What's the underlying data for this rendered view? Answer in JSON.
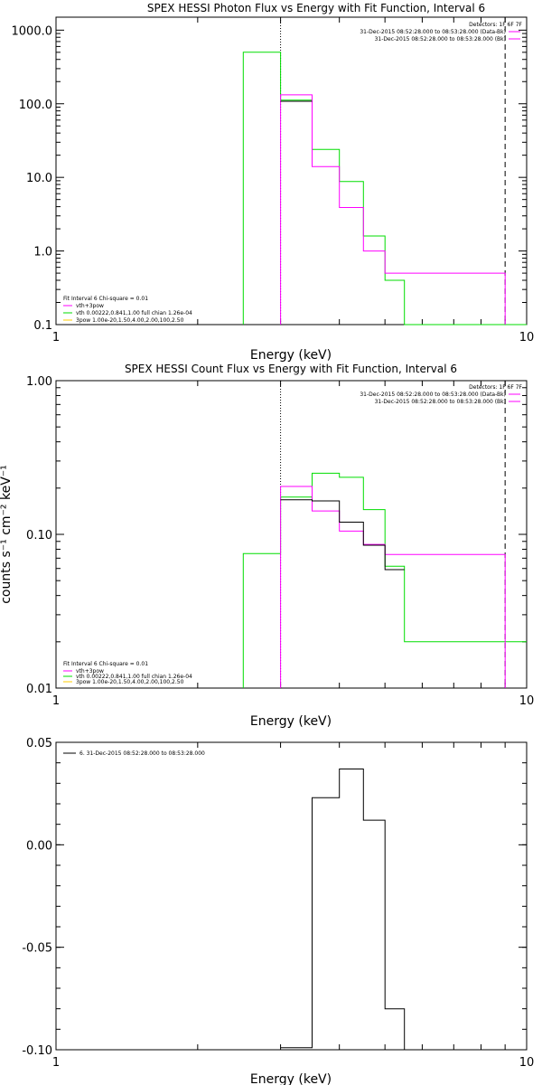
{
  "colors": {
    "data": "#ff00ff",
    "total": "#000000",
    "vth": "#00dd00",
    "pow": "#ffcc00",
    "frame": "#000000"
  },
  "chart_data": [
    {
      "type": "line",
      "step": true,
      "title": "SPEX HESSI Photon Flux vs Energy with Fit Function, Interval 6",
      "xlabel": "Energy (keV)",
      "ylabel": "",
      "xscale": "log",
      "yscale": "log",
      "xlim": [
        1,
        10
      ],
      "ylim": [
        0.1,
        1500
      ],
      "xticks": [
        {
          "v": 1,
          "label": "1"
        },
        {
          "v": 10,
          "label": "10"
        }
      ],
      "yticks": [
        {
          "v": 1000,
          "label": "1000.0"
        },
        {
          "v": 100,
          "label": "100.0"
        },
        {
          "v": 10,
          "label": "10.0"
        },
        {
          "v": 1,
          "label": "1.0"
        },
        {
          "v": 0.1,
          "label": "0.1"
        }
      ],
      "vlines": [
        {
          "x": 3.0,
          "style": "dotted",
          "color": "frame"
        },
        {
          "x": 9.0,
          "style": "dashed",
          "color": "frame"
        }
      ],
      "top_right_lines": [
        {
          "text": "Detectors: 1F 6F 7F",
          "color": null
        },
        {
          "text": "31-Dec-2015 08:52:28.000 to 08:53:28.000 (Data-Bk)",
          "color": "data"
        },
        {
          "text": "31-Dec-2015 08:52:28.000 to 08:53:28.000 (Bk)",
          "color": "data"
        }
      ],
      "legend": {
        "position": "bottom-left",
        "header": "Fit Interval 6   Chi-square = 0.01",
        "entries": [
          {
            "text": "vth+3pow",
            "color": "data"
          },
          {
            "text": "vth 0.00222,0.841,1.00  full chian 1.26e-04",
            "color": "vth"
          },
          {
            "text": "3pow 1.00e-20,1.50,4.00,2.00,100,2.50",
            "color": "pow"
          }
        ]
      },
      "series": [
        {
          "role": "vth",
          "color": "vth",
          "edges": [
            2.5,
            3.0,
            3.5,
            4.0,
            4.5,
            5.0,
            5.5,
            6.5,
            9.0,
            10.0
          ],
          "values": [
            500,
            112,
            24,
            8.8,
            1.6,
            0.4,
            0.1,
            0.1,
            0.1
          ],
          "drop_left": true,
          "drop_right": false
        },
        {
          "role": "data",
          "color": "data",
          "edges": [
            3.0,
            3.5,
            4.0,
            4.5,
            5.0,
            5.5,
            6.5,
            9.0
          ],
          "values": [
            132,
            14,
            3.9,
            1.0,
            0.5,
            0.5,
            0.5
          ],
          "drop_left": true,
          "drop_right": true
        },
        {
          "role": "total",
          "color": "total",
          "edges": [
            3.0,
            3.5
          ],
          "values": [
            108
          ],
          "drop_left": false,
          "drop_right": false
        }
      ]
    },
    {
      "type": "line",
      "step": true,
      "title": "SPEX HESSI Count Flux vs Energy with Fit Function, Interval 6",
      "xlabel": "Energy (keV)",
      "ylabel": "counts s⁻¹ cm⁻² keV⁻¹",
      "xscale": "log",
      "yscale": "log",
      "xlim": [
        1,
        10
      ],
      "ylim": [
        0.01,
        1.0
      ],
      "xticks": [
        {
          "v": 1,
          "label": "1"
        },
        {
          "v": 10,
          "label": "10"
        }
      ],
      "yticks": [
        {
          "v": 1.0,
          "label": "1.00"
        },
        {
          "v": 0.1,
          "label": "0.10"
        },
        {
          "v": 0.01,
          "label": "0.01"
        }
      ],
      "vlines": [
        {
          "x": 3.0,
          "style": "dotted",
          "color": "frame"
        },
        {
          "x": 9.0,
          "style": "dashed",
          "color": "frame"
        }
      ],
      "top_right_lines": [
        {
          "text": "Detectors: 1F 6F 7F",
          "color": null
        },
        {
          "text": "31-Dec-2015 08:52:28.000 to 08:53:28.000 (Data-Bk)",
          "color": "data"
        },
        {
          "text": "31-Dec-2015 08:52:28.000 to 08:53:28.000 (Bk)",
          "color": "data"
        }
      ],
      "legend": {
        "position": "bottom-left",
        "header": "Fit Interval 6   Chi-square = 0.01",
        "entries": [
          {
            "text": "vth+3pow",
            "color": "data"
          },
          {
            "text": "vth 0.00222,0.841,1.00  full chian 1.26e-04",
            "color": "vth"
          },
          {
            "text": "3pow 1.00e-20,1.50,4.00,2.00,100,2.50",
            "color": "pow"
          }
        ]
      },
      "series": [
        {
          "role": "vth",
          "color": "vth",
          "edges": [
            2.5,
            3.0,
            3.5,
            4.0,
            4.5,
            5.0,
            5.5,
            6.5,
            9.0,
            10.0
          ],
          "values": [
            0.075,
            0.175,
            0.25,
            0.235,
            0.145,
            0.062,
            0.02,
            0.02,
            0.02
          ],
          "drop_left": true,
          "drop_right": false
        },
        {
          "role": "data",
          "color": "data",
          "edges": [
            3.0,
            3.5,
            4.0,
            4.5,
            5.0,
            5.5,
            6.5,
            9.0
          ],
          "values": [
            0.205,
            0.142,
            0.105,
            0.086,
            0.074,
            0.074,
            0.074
          ],
          "drop_left": true,
          "drop_right": true
        },
        {
          "role": "total",
          "color": "total",
          "edges": [
            3.0,
            3.5,
            4.0,
            4.5,
            5.0,
            5.5
          ],
          "values": [
            0.168,
            0.165,
            0.12,
            0.085,
            0.059
          ],
          "drop_left": false,
          "drop_right": false
        }
      ]
    },
    {
      "type": "line",
      "step": true,
      "title": "",
      "xlabel": "Energy (keV)",
      "ylabel": "",
      "xscale": "log",
      "yscale": "linear",
      "xlim": [
        1,
        10
      ],
      "ylim": [
        -0.1,
        0.05
      ],
      "xticks": [
        {
          "v": 1,
          "label": "1"
        },
        {
          "v": 10,
          "label": "10"
        }
      ],
      "yticks": [
        {
          "v": 0.05,
          "label": "0.05"
        },
        {
          "v": 0.0,
          "label": "0.00"
        },
        {
          "v": -0.05,
          "label": "-0.05"
        },
        {
          "v": -0.1,
          "label": "-0.10"
        }
      ],
      "vlines": [],
      "top_right_lines": [],
      "legend": {
        "position": "top-left",
        "header": "",
        "entries": [
          {
            "text": "6. 31-Dec-2015 08:52:28.000 to 08:53:28.000",
            "color": "total"
          }
        ]
      },
      "series": [
        {
          "role": "residual",
          "color": "total",
          "edges": [
            3.0,
            3.5,
            4.0,
            4.5,
            5.0,
            5.5,
            6.5
          ],
          "values": [
            -0.099,
            0.023,
            0.037,
            0.012,
            -0.08,
            -0.1
          ],
          "drop_left": false,
          "drop_right": false
        }
      ]
    }
  ]
}
